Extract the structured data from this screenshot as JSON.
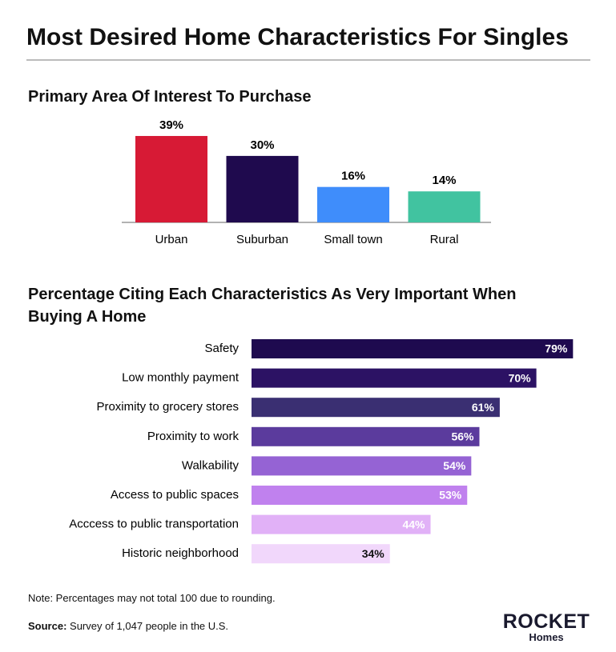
{
  "title": "Most Desired Home Characteristics For Singles",
  "chart_data": [
    {
      "type": "bar",
      "title": "Primary Area Of Interest To Purchase",
      "categories": [
        "Urban",
        "Suburban",
        "Small town",
        "Rural"
      ],
      "values": [
        39,
        30,
        16,
        14
      ],
      "value_labels": [
        "39%",
        "30%",
        "16%",
        "14%"
      ],
      "colors": [
        "#d71a35",
        "#1f0a4e",
        "#3f8dfb",
        "#41c3a0"
      ]
    },
    {
      "type": "barh",
      "title": "Percentage Citing Each Characteristics As Very Important When Buying A Home",
      "categories": [
        "Safety",
        "Low monthly payment",
        "Proximity to grocery stores",
        "Proximity to work",
        "Walkability",
        "Access to public spaces",
        "Acccess to public transportation",
        "Historic neighborhood"
      ],
      "values": [
        79,
        70,
        61,
        56,
        54,
        53,
        44,
        34
      ],
      "value_labels": [
        "79%",
        "70%",
        "61%",
        "56%",
        "54%",
        "53%",
        "44%",
        "34%"
      ],
      "colors": [
        "#1e0a4f",
        "#2c1264",
        "#3a2f72",
        "#5b3b9d",
        "#9563d4",
        "#c081ee",
        "#e1b1f7",
        "#f1d7fb"
      ],
      "value_label_colors": [
        "#ffffff",
        "#ffffff",
        "#ffffff",
        "#ffffff",
        "#ffffff",
        "#ffffff",
        "#ffffff",
        "#111111"
      ]
    }
  ],
  "note": "Note: Percentages may not total 100 due to rounding.",
  "source_label": "Source:",
  "source": "Survey of 1,047 people in the U.S.",
  "logo": {
    "brand": "ROCKET",
    "sub": "Homes"
  }
}
